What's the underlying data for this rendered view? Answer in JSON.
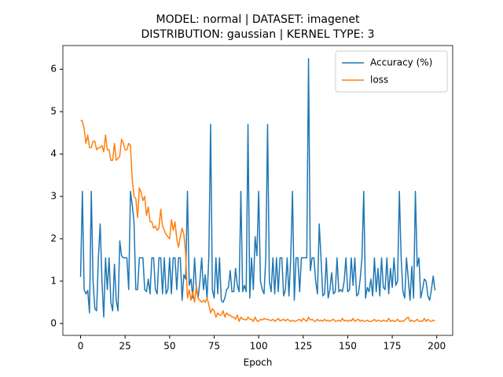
{
  "chart_data": {
    "type": "line",
    "title": [
      "MODEL: normal | DATASET: imagenet",
      "DISTRIBUTION: gaussian | KERNEL TYPE: 3"
    ],
    "x_label": "Epoch",
    "x": [
      0,
      1,
      2,
      3,
      4,
      5,
      6,
      7,
      8,
      9,
      10,
      11,
      12,
      13,
      14,
      15,
      16,
      17,
      18,
      19,
      20,
      21,
      22,
      23,
      24,
      25,
      26,
      27,
      28,
      29,
      30,
      31,
      32,
      33,
      34,
      35,
      36,
      37,
      38,
      39,
      40,
      41,
      42,
      43,
      44,
      45,
      46,
      47,
      48,
      49,
      50,
      51,
      52,
      53,
      54,
      55,
      56,
      57,
      58,
      59,
      60,
      61,
      62,
      63,
      64,
      65,
      66,
      67,
      68,
      69,
      70,
      71,
      72,
      73,
      74,
      75,
      76,
      77,
      78,
      79,
      80,
      81,
      82,
      83,
      84,
      85,
      86,
      87,
      88,
      89,
      90,
      91,
      92,
      93,
      94,
      95,
      96,
      97,
      98,
      99,
      100,
      101,
      102,
      103,
      104,
      105,
      106,
      107,
      108,
      109,
      110,
      111,
      112,
      113,
      114,
      115,
      116,
      117,
      118,
      119,
      120,
      121,
      122,
      123,
      124,
      125,
      126,
      127,
      128,
      129,
      130,
      131,
      132,
      133,
      134,
      135,
      136,
      137,
      138,
      139,
      140,
      141,
      142,
      143,
      144,
      145,
      146,
      147,
      148,
      149,
      150,
      151,
      152,
      153,
      154,
      155,
      156,
      157,
      158,
      159,
      160,
      161,
      162,
      163,
      164,
      165,
      166,
      167,
      168,
      169,
      170,
      171,
      172,
      173,
      174,
      175,
      176,
      177,
      178,
      179,
      180,
      181,
      182,
      183,
      184,
      185,
      186,
      187,
      188,
      189,
      190,
      191,
      192,
      193,
      194,
      195,
      196,
      197,
      198,
      199
    ],
    "series": [
      {
        "name": "Accuracy (%)",
        "color": "#1f77b4",
        "values": [
          1.1,
          3.12,
          0.8,
          0.7,
          0.78,
          0.25,
          3.12,
          1.0,
          0.35,
          0.3,
          1.55,
          2.35,
          1.0,
          0.15,
          1.55,
          0.8,
          1.55,
          0.5,
          0.3,
          1.4,
          0.55,
          0.3,
          1.95,
          1.6,
          1.55,
          1.55,
          1.55,
          0.8,
          3.12,
          2.8,
          2.4,
          0.8,
          0.8,
          1.55,
          1.55,
          1.55,
          0.8,
          0.75,
          1.05,
          0.7,
          1.55,
          1.55,
          0.8,
          0.7,
          1.55,
          1.55,
          0.7,
          1.55,
          0.7,
          0.8,
          1.55,
          0.7,
          1.55,
          1.55,
          0.8,
          1.55,
          1.55,
          0.55,
          1.15,
          1.05,
          3.12,
          0.9,
          1.05,
          0.6,
          1.55,
          0.8,
          0.6,
          1.0,
          1.55,
          0.8,
          1.15,
          0.6,
          1.55,
          4.7,
          0.8,
          0.6,
          1.55,
          0.7,
          1.55,
          0.55,
          0.5,
          0.6,
          0.8,
          0.85,
          1.25,
          0.75,
          0.75,
          1.3,
          0.9,
          0.75,
          3.12,
          0.75,
          0.9,
          0.75,
          4.7,
          0.6,
          1.55,
          0.8,
          2.05,
          1.6,
          3.12,
          1.0,
          0.8,
          0.7,
          1.55,
          4.7,
          1.0,
          0.75,
          1.55,
          0.7,
          1.55,
          0.75,
          1.55,
          1.55,
          0.65,
          0.8,
          1.55,
          0.65,
          1.55,
          3.12,
          0.55,
          1.55,
          1.55,
          0.75,
          1.55,
          1.55,
          1.55,
          1.55,
          6.25,
          1.25,
          1.55,
          1.55,
          1.0,
          0.7,
          2.35,
          1.55,
          0.65,
          0.7,
          1.55,
          0.6,
          0.8,
          1.2,
          0.7,
          0.75,
          1.55,
          0.75,
          0.8,
          0.75,
          1.0,
          1.55,
          0.75,
          0.8,
          1.55,
          0.9,
          1.55,
          0.65,
          0.7,
          1.05,
          1.55,
          3.12,
          0.6,
          0.85,
          0.75,
          1.05,
          0.65,
          1.55,
          0.75,
          1.3,
          0.65,
          1.55,
          0.85,
          0.8,
          1.55,
          0.7,
          1.3,
          0.85,
          1.55,
          0.9,
          1.0,
          3.12,
          1.55,
          0.75,
          0.6,
          1.55,
          1.05,
          0.55,
          1.35,
          0.6,
          3.12,
          1.35,
          1.55,
          0.6,
          0.8,
          1.05,
          1.0,
          0.65,
          0.55,
          0.8,
          1.12,
          0.78
        ]
      },
      {
        "name": "loss",
        "color": "#ff7f0e",
        "values": [
          4.8,
          4.78,
          4.6,
          4.25,
          4.45,
          4.15,
          4.15,
          4.3,
          4.3,
          4.1,
          4.15,
          4.15,
          4.2,
          4.05,
          4.45,
          4.1,
          4.1,
          3.85,
          3.85,
          4.25,
          3.85,
          3.9,
          3.95,
          4.35,
          4.25,
          4.1,
          4.1,
          4.25,
          4.2,
          3.4,
          3.0,
          2.95,
          2.5,
          3.2,
          3.1,
          2.9,
          3.0,
          2.55,
          2.75,
          2.4,
          2.4,
          2.25,
          2.3,
          2.2,
          2.25,
          2.7,
          2.3,
          2.2,
          2.1,
          2.05,
          2.0,
          2.45,
          2.2,
          2.4,
          2.0,
          1.8,
          2.05,
          2.25,
          2.1,
          1.65,
          0.6,
          0.8,
          0.55,
          0.75,
          0.5,
          0.9,
          0.6,
          0.55,
          0.5,
          0.55,
          0.5,
          0.6,
          0.45,
          0.25,
          0.35,
          0.3,
          0.15,
          0.25,
          0.2,
          0.2,
          0.3,
          0.15,
          0.25,
          0.2,
          0.2,
          0.15,
          0.15,
          0.1,
          0.2,
          0.05,
          0.15,
          0.1,
          0.1,
          0.08,
          0.15,
          0.1,
          0.1,
          0.05,
          0.15,
          0.06,
          0.05,
          0.1,
          0.08,
          0.12,
          0.1,
          0.1,
          0.08,
          0.07,
          0.1,
          0.05,
          0.08,
          0.12,
          0.06,
          0.08,
          0.1,
          0.06,
          0.1,
          0.08,
          0.05,
          0.08,
          0.05,
          0.06,
          0.08,
          0.1,
          0.05,
          0.12,
          0.08,
          0.05,
          0.15,
          0.08,
          0.1,
          0.06,
          0.05,
          0.1,
          0.06,
          0.08,
          0.05,
          0.1,
          0.06,
          0.08,
          0.05,
          0.08,
          0.1,
          0.05,
          0.06,
          0.08,
          0.05,
          0.12,
          0.06,
          0.08,
          0.05,
          0.08,
          0.06,
          0.12,
          0.05,
          0.08,
          0.1,
          0.05,
          0.08,
          0.05,
          0.06,
          0.08,
          0.05,
          0.05,
          0.06,
          0.1,
          0.05,
          0.08,
          0.06,
          0.05,
          0.08,
          0.06,
          0.05,
          0.12,
          0.05,
          0.08,
          0.05,
          0.06,
          0.1,
          0.05,
          0.06,
          0.05,
          0.08,
          0.12,
          0.15,
          0.05,
          0.08,
          0.05,
          0.06,
          0.1,
          0.05,
          0.06,
          0.05,
          0.12,
          0.05,
          0.1,
          0.06,
          0.05,
          0.08,
          0.06
        ]
      }
    ],
    "xlim": [
      -9.95,
      208.95
    ],
    "ylim": [
      -0.28,
      6.56
    ],
    "xticks": [
      0,
      25,
      50,
      75,
      100,
      125,
      150,
      175,
      200
    ],
    "yticks": [
      0,
      1,
      2,
      3,
      4,
      5,
      6
    ],
    "legend": "upper right"
  }
}
